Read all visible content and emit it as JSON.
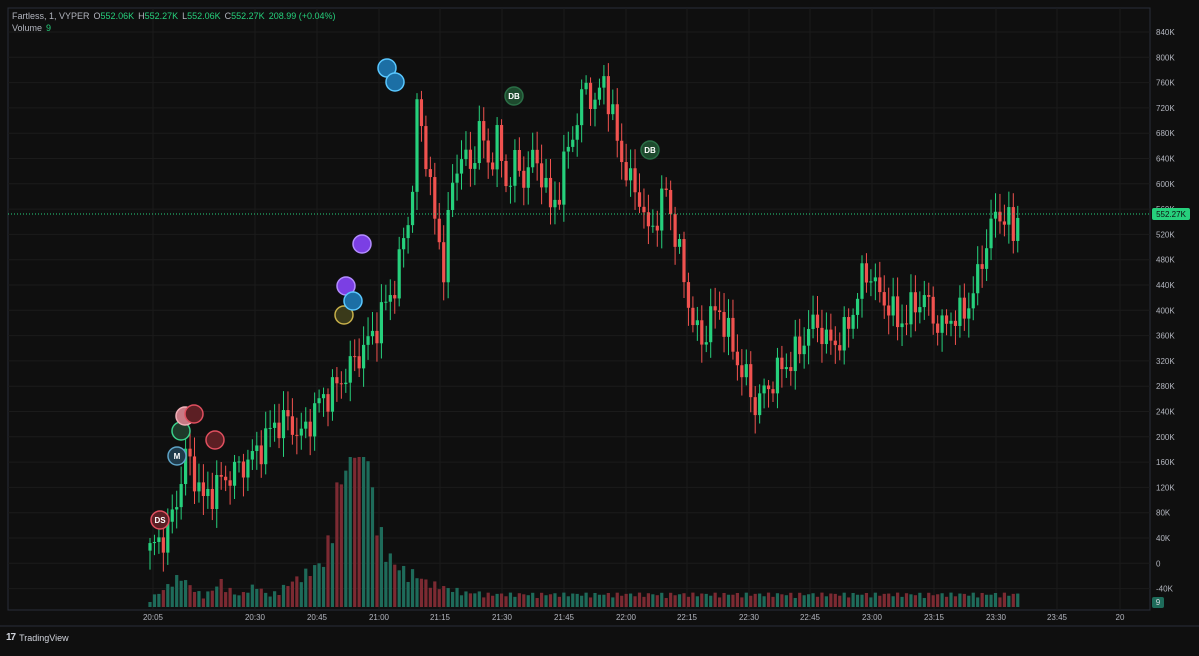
{
  "legend": {
    "symbol": "Fartless, 1, VYPER",
    "o_label": "O",
    "o_value": "552.06K",
    "h_label": "H",
    "h_value": "552.27K",
    "l_label": "L",
    "l_value": "552.06K",
    "c_label": "C",
    "c_value": "552.27K",
    "change": "208.99 (+0.04%)",
    "volume_label": "Volume",
    "volume_value": "9"
  },
  "price_badge": "552.27K",
  "volume_badge": "9",
  "footer": {
    "brand": "TradingView"
  },
  "markers": [
    "DS",
    "M",
    "DB",
    "DB"
  ],
  "colors": {
    "up": "#26d07c",
    "down": "#f0524f",
    "vol_up": "#1e6b5a",
    "vol_down": "#7c2a32",
    "bg": "#0f0f0f",
    "grid": "#1b1b1b"
  },
  "chart_data": {
    "type": "candlestick",
    "x_ticks": [
      "20:05",
      "20:30",
      "20:45",
      "21:00",
      "21:15",
      "21:30",
      "21:45",
      "22:00",
      "22:15",
      "22:30",
      "22:45",
      "23:00",
      "23:15",
      "23:30",
      "23:45",
      "20"
    ],
    "y_ticks": [
      "840K",
      "800K",
      "760K",
      "720K",
      "680K",
      "640K",
      "600K",
      "560K",
      "520K",
      "480K",
      "440K",
      "400K",
      "360K",
      "320K",
      "280K",
      "240K",
      "200K",
      "160K",
      "120K",
      "80K",
      "40K",
      "0",
      "-40K"
    ],
    "ylim": [
      -40000,
      840000
    ],
    "last_price": 552270,
    "close_path": [
      [
        0,
        20000
      ],
      [
        4,
        50000
      ],
      [
        6,
        100000
      ],
      [
        8,
        170000
      ],
      [
        10,
        140000
      ],
      [
        12,
        100000
      ],
      [
        16,
        130000
      ],
      [
        20,
        150000
      ],
      [
        24,
        175000
      ],
      [
        28,
        220000
      ],
      [
        31,
        225000
      ],
      [
        34,
        200000
      ],
      [
        38,
        255000
      ],
      [
        42,
        280000
      ],
      [
        46,
        320000
      ],
      [
        50,
        360000
      ],
      [
        53,
        410000
      ],
      [
        55,
        440000
      ],
      [
        57,
        510000
      ],
      [
        59,
        590000
      ],
      [
        60,
        720000
      ],
      [
        62,
        650000
      ],
      [
        64,
        540000
      ],
      [
        66,
        470000
      ],
      [
        68,
        600000
      ],
      [
        70,
        650000
      ],
      [
        72,
        620000
      ],
      [
        74,
        690000
      ],
      [
        76,
        630000
      ],
      [
        78,
        670000
      ],
      [
        80,
        600000
      ],
      [
        82,
        630000
      ],
      [
        84,
        610000
      ],
      [
        86,
        640000
      ],
      [
        88,
        620000
      ],
      [
        90,
        560000
      ],
      [
        92,
        590000
      ],
      [
        94,
        660000
      ],
      [
        96,
        700000
      ],
      [
        98,
        760000
      ],
      [
        100,
        720000
      ],
      [
        102,
        770000
      ],
      [
        104,
        700000
      ],
      [
        106,
        640000
      ],
      [
        108,
        600000
      ],
      [
        110,
        580000
      ],
      [
        112,
        520000
      ],
      [
        114,
        550000
      ],
      [
        116,
        590000
      ],
      [
        118,
        520000
      ],
      [
        120,
        450000
      ],
      [
        122,
        380000
      ],
      [
        124,
        350000
      ],
      [
        126,
        390000
      ],
      [
        128,
        400000
      ],
      [
        130,
        360000
      ],
      [
        132,
        320000
      ],
      [
        134,
        290000
      ],
      [
        136,
        250000
      ],
      [
        138,
        270000
      ],
      [
        140,
        290000
      ],
      [
        142,
        310000
      ],
      [
        144,
        320000
      ],
      [
        146,
        340000
      ],
      [
        148,
        370000
      ],
      [
        150,
        380000
      ],
      [
        152,
        350000
      ],
      [
        154,
        350000
      ],
      [
        156,
        360000
      ],
      [
        158,
        400000
      ],
      [
        160,
        450000
      ],
      [
        162,
        460000
      ],
      [
        164,
        420000
      ],
      [
        166,
        410000
      ],
      [
        168,
        380000
      ],
      [
        170,
        390000
      ],
      [
        172,
        410000
      ],
      [
        174,
        420000
      ],
      [
        176,
        390000
      ],
      [
        178,
        370000
      ],
      [
        180,
        390000
      ],
      [
        182,
        390000
      ],
      [
        184,
        410000
      ],
      [
        186,
        450000
      ],
      [
        188,
        510000
      ],
      [
        190,
        550000
      ],
      [
        192,
        550000
      ],
      [
        194,
        520000
      ],
      [
        195,
        552000
      ]
    ],
    "volume": [
      5,
      8,
      10,
      12,
      15,
      18,
      20,
      22,
      18,
      15,
      12,
      10,
      8,
      10,
      12,
      15,
      18,
      14,
      12,
      10,
      8,
      10,
      12,
      14,
      16,
      12,
      10,
      8,
      10,
      12,
      14,
      16,
      18,
      20,
      22,
      24,
      26,
      28,
      30,
      32,
      45,
      60,
      80,
      90,
      100,
      120,
      140,
      150,
      120,
      100,
      80,
      60,
      50,
      40,
      35,
      30,
      28,
      26,
      25,
      24,
      22,
      20,
      18,
      17,
      16,
      15,
      14,
      13,
      12,
      12,
      11,
      10,
      10,
      10,
      10,
      9,
      9,
      9,
      9,
      9,
      9,
      9,
      9,
      9,
      9,
      9,
      9,
      9,
      9,
      9,
      9,
      9,
      9,
      9,
      9
    ]
  }
}
